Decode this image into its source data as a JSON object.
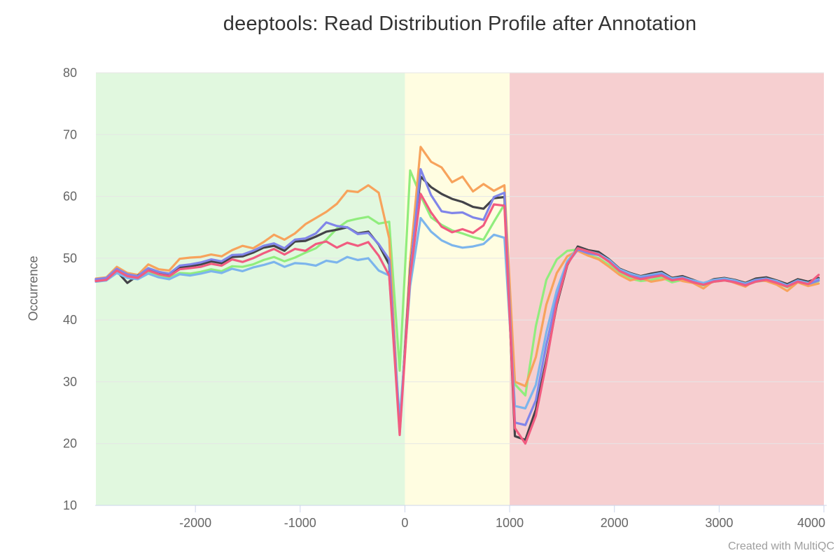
{
  "header": {
    "title": "deeptools: Read Distribution Profile after Annotation"
  },
  "footer": {
    "credit": "Created with MultiQC"
  },
  "chart_data": {
    "type": "line",
    "title": "deeptools: Read Distribution Profile after Annotation",
    "xlabel": "",
    "ylabel": "Occurrence",
    "xlim": [
      -2950,
      4000
    ],
    "ylim": [
      10,
      80
    ],
    "x_ticks": [
      -2000,
      -1000,
      0,
      1000,
      2000,
      3000,
      4000
    ],
    "y_ticks": [
      10,
      20,
      30,
      40,
      50,
      60,
      70,
      80
    ],
    "grid": "horizontal",
    "legend": "none",
    "colors": {
      "axis_line": "#ccd6eb",
      "grid": "#e6e6e6",
      "tick_label": "#666666",
      "title": "#333333",
      "credit": "#9e9e9e",
      "background": "#ffffff"
    },
    "plot_bands": [
      {
        "name": "green-band",
        "from": -2950,
        "to": 0,
        "color": "#e1f8df"
      },
      {
        "name": "yellow-band",
        "from": 0,
        "to": 1000,
        "color": "#fffde1"
      },
      {
        "name": "red-band",
        "from": 1000,
        "to": 4000,
        "color": "#f6cfd0"
      }
    ],
    "x": [
      -2950,
      -2850,
      -2750,
      -2650,
      -2550,
      -2450,
      -2350,
      -2250,
      -2150,
      -2050,
      -1950,
      -1850,
      -1750,
      -1650,
      -1550,
      -1450,
      -1350,
      -1250,
      -1150,
      -1050,
      -950,
      -850,
      -750,
      -650,
      -550,
      -450,
      -350,
      -250,
      -150,
      -50,
      50,
      150,
      250,
      350,
      450,
      550,
      650,
      750,
      850,
      950,
      1050,
      1150,
      1250,
      1350,
      1450,
      1550,
      1650,
      1750,
      1850,
      1950,
      2050,
      2150,
      2250,
      2350,
      2450,
      2550,
      2650,
      2750,
      2850,
      2950,
      3050,
      3150,
      3250,
      3350,
      3450,
      3550,
      3650,
      3750,
      3850,
      3950
    ],
    "series": [
      {
        "name": "green",
        "color": "#90ed7d",
        "values": [
          46.4,
          46.6,
          47.7,
          47.0,
          46.7,
          47.8,
          47.1,
          46.8,
          47.6,
          47.5,
          47.8,
          48.2,
          47.9,
          48.7,
          48.6,
          49.0,
          49.7,
          50.2,
          49.5,
          50.1,
          50.9,
          51.6,
          53.0,
          54.8,
          56.0,
          56.4,
          56.7,
          55.6,
          55.9,
          31.8,
          64.2,
          60.1,
          56.6,
          55.4,
          54.5,
          54.0,
          53.4,
          53.0,
          55.9,
          58.7,
          29.6,
          27.8,
          39.0,
          46.5,
          49.8,
          51.2,
          51.4,
          50.5,
          50.0,
          48.9,
          47.5,
          46.7,
          46.3,
          46.5,
          46.9,
          46.1,
          46.5,
          46.0,
          45.6,
          46.2,
          46.4,
          46.1,
          45.6,
          46.2,
          46.4,
          46.0,
          45.3,
          46.1,
          45.7,
          46.3
        ]
      },
      {
        "name": "orange",
        "color": "#f7a35c",
        "values": [
          46.7,
          46.9,
          48.6,
          47.6,
          47.3,
          49.0,
          48.2,
          48.0,
          49.9,
          50.1,
          50.2,
          50.6,
          50.3,
          51.3,
          52.0,
          51.6,
          52.6,
          53.8,
          53.0,
          54.0,
          55.5,
          56.5,
          57.5,
          58.8,
          60.9,
          60.7,
          61.8,
          60.6,
          53.2,
          21.7,
          49.5,
          68.0,
          65.6,
          64.7,
          62.3,
          63.2,
          60.8,
          62.0,
          60.9,
          61.8,
          30.0,
          29.3,
          34.0,
          42.5,
          47.6,
          50.3,
          51.2,
          50.4,
          49.8,
          48.6,
          47.3,
          46.4,
          46.8,
          46.2,
          46.5,
          46.9,
          46.3,
          46.0,
          45.1,
          46.4,
          46.6,
          46.0,
          45.4,
          46.5,
          46.3,
          45.7,
          44.7,
          46.1,
          45.5,
          45.9
        ]
      },
      {
        "name": "black",
        "color": "#434348",
        "values": [
          46.5,
          46.7,
          47.9,
          46.0,
          47.2,
          48.1,
          47.6,
          47.3,
          48.5,
          48.7,
          49.0,
          49.5,
          49.2,
          50.2,
          50.3,
          50.9,
          51.7,
          52.0,
          51.2,
          52.7,
          52.8,
          53.5,
          54.3,
          54.6,
          55.0,
          54.0,
          54.3,
          52.2,
          49.0,
          22.2,
          48.0,
          63.2,
          61.5,
          60.4,
          59.6,
          59.1,
          58.3,
          58.0,
          59.7,
          59.9,
          21.2,
          20.6,
          25.5,
          33.5,
          42.5,
          48.9,
          51.9,
          51.3,
          51.0,
          49.8,
          48.3,
          47.6,
          47.1,
          47.5,
          47.8,
          46.8,
          47.1,
          46.5,
          45.9,
          46.6,
          46.8,
          46.5,
          46.0,
          46.7,
          46.9,
          46.4,
          45.8,
          46.6,
          46.2,
          46.8
        ]
      },
      {
        "name": "blue",
        "color": "#7cb5ec",
        "values": [
          46.2,
          46.4,
          47.6,
          46.8,
          46.6,
          47.5,
          46.9,
          46.6,
          47.4,
          47.2,
          47.5,
          47.9,
          47.6,
          48.3,
          47.9,
          48.5,
          48.9,
          49.4,
          48.6,
          49.2,
          49.1,
          48.8,
          49.6,
          49.3,
          50.2,
          49.7,
          50.0,
          48.0,
          47.2,
          23.9,
          45.5,
          56.5,
          54.3,
          52.9,
          52.1,
          51.7,
          51.9,
          52.3,
          53.8,
          53.3,
          26.1,
          25.7,
          29.5,
          38.0,
          44.8,
          49.5,
          51.6,
          51.1,
          50.7,
          49.7,
          48.2,
          47.5,
          47.0,
          47.3,
          47.6,
          46.7,
          46.9,
          46.4,
          46.0,
          46.5,
          46.7,
          46.4,
          45.9,
          46.5,
          46.7,
          46.3,
          45.6,
          46.4,
          46.0,
          46.6
        ]
      },
      {
        "name": "purple",
        "color": "#8085e9",
        "values": [
          46.6,
          46.8,
          48.3,
          47.4,
          47.1,
          48.4,
          47.8,
          47.5,
          48.8,
          49.0,
          49.3,
          49.8,
          49.5,
          50.5,
          50.6,
          51.2,
          52.0,
          52.4,
          51.6,
          53.0,
          53.2,
          54.0,
          55.8,
          55.2,
          55.0,
          53.9,
          54.1,
          52.3,
          49.8,
          21.9,
          47.5,
          64.4,
          60.2,
          57.6,
          57.3,
          57.4,
          56.6,
          56.2,
          59.9,
          60.6,
          23.4,
          23.0,
          27.0,
          36.0,
          43.5,
          49.1,
          51.4,
          50.8,
          50.5,
          49.5,
          48.0,
          47.2,
          46.8,
          47.1,
          47.4,
          46.5,
          46.8,
          46.2,
          45.7,
          46.3,
          46.5,
          46.2,
          45.7,
          46.4,
          46.6,
          46.1,
          45.5,
          46.3,
          45.8,
          46.4
        ]
      },
      {
        "name": "pink",
        "color": "#f15c80",
        "values": [
          46.3,
          46.5,
          48.0,
          47.1,
          46.8,
          48.0,
          47.4,
          47.1,
          48.2,
          48.4,
          48.6,
          49.1,
          48.8,
          49.8,
          49.4,
          50.0,
          50.8,
          51.5,
          50.6,
          51.5,
          51.2,
          52.3,
          52.7,
          51.7,
          52.5,
          52.0,
          52.6,
          50.4,
          47.2,
          21.4,
          47.0,
          60.4,
          57.4,
          55.1,
          54.2,
          54.7,
          54.1,
          55.3,
          58.7,
          58.5,
          22.5,
          20.0,
          24.5,
          33.0,
          42.8,
          49.0,
          51.6,
          51.1,
          50.6,
          49.4,
          47.9,
          47.1,
          46.6,
          46.9,
          47.2,
          46.4,
          46.7,
          46.1,
          45.7,
          46.2,
          46.4,
          46.1,
          45.6,
          46.2,
          46.5,
          46.0,
          45.4,
          46.2,
          45.8,
          47.3
        ]
      }
    ]
  }
}
